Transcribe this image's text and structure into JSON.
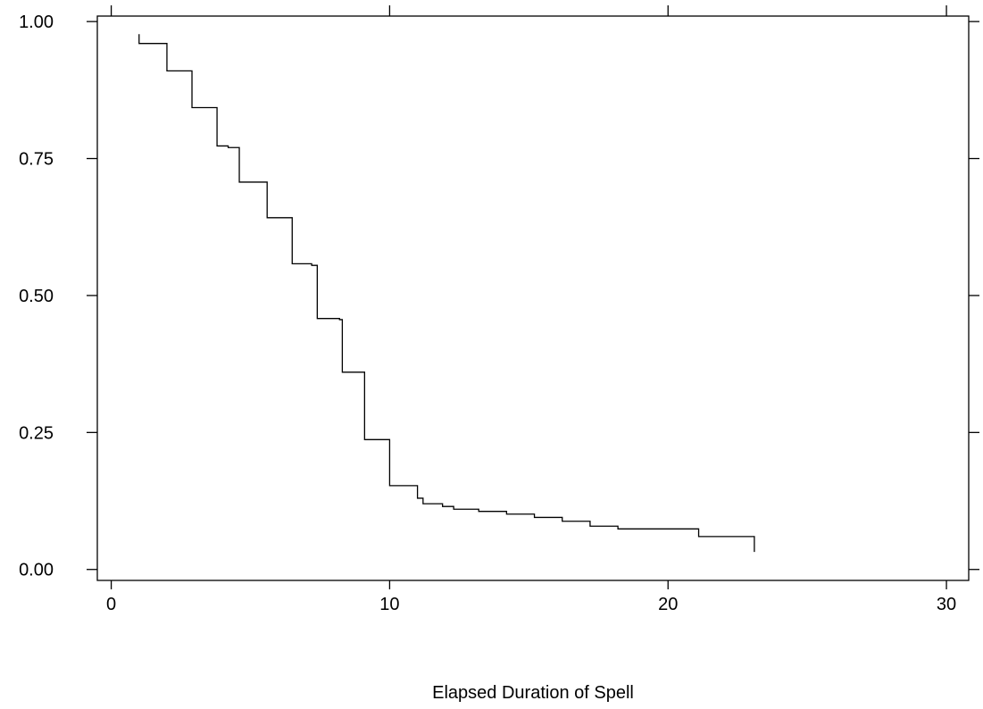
{
  "chart_data": {
    "type": "line",
    "step": true,
    "title": "",
    "xlabel": "Elapsed Duration of Spell",
    "ylabel": "",
    "xlim": [
      -0.5,
      30.8
    ],
    "ylim": [
      -0.02,
      1.01
    ],
    "grid": false,
    "legend": "none",
    "line_color": "#000000",
    "x_ticks": [
      0,
      10,
      20,
      30
    ],
    "x_tick_labels": [
      "0",
      "10",
      "20",
      "30"
    ],
    "y_ticks": [
      0.0,
      0.25,
      0.5,
      0.75,
      1.0
    ],
    "y_tick_labels": [
      "0.00",
      "0.25",
      "0.50",
      "0.75",
      "1.00"
    ],
    "series": [
      {
        "x": [
          1.0,
          1.0,
          2.0,
          2.9,
          3.8,
          4.2,
          4.6,
          5.6,
          6.5,
          7.2,
          7.4,
          8.2,
          8.3,
          9.1,
          10.0,
          11.0,
          11.2,
          11.9,
          12.3,
          13.2,
          14.2,
          15.2,
          16.2,
          17.2,
          18.2,
          19.1,
          20.1,
          21.1,
          23.1,
          23.1
        ],
        "y": [
          0.977,
          0.96,
          0.91,
          0.843,
          0.773,
          0.77,
          0.707,
          0.642,
          0.558,
          0.555,
          0.458,
          0.456,
          0.36,
          0.237,
          0.153,
          0.13,
          0.12,
          0.115,
          0.11,
          0.106,
          0.101,
          0.095,
          0.088,
          0.079,
          0.074,
          0.074,
          0.074,
          0.06,
          0.06,
          0.032
        ]
      }
    ]
  }
}
